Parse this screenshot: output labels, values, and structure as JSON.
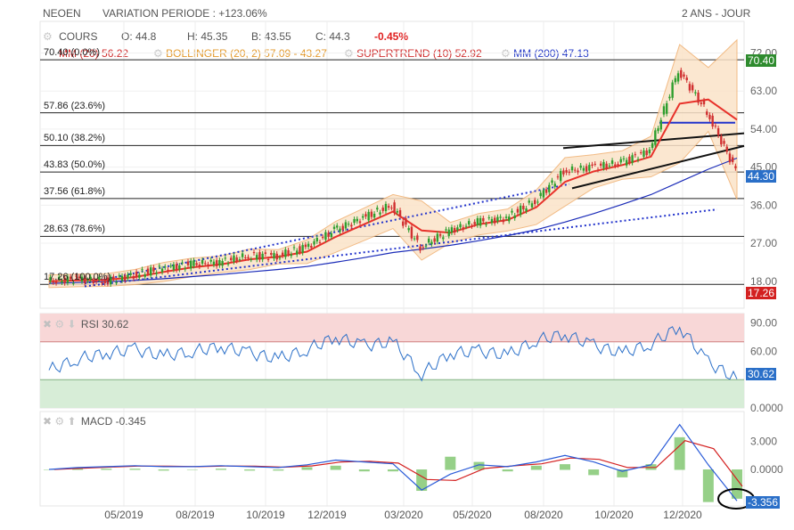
{
  "header": {
    "symbol": "NEOEN",
    "variation": "VARIATION PERIODE : +123.06%",
    "range": "2 ANS - JOUR"
  },
  "legend": {
    "cours_label": "COURS",
    "open": "O: 44.8",
    "high": "H: 45.35",
    "low": "B: 43.55",
    "close": "C: 44.3",
    "change": "-0.45%",
    "mm_label": "MM (20)",
    "mm_value": "56.22",
    "bollinger_label": "BOLLINGER (20, 2)",
    "bollinger_value": "57.09 - 43.27",
    "supertrend_label": "SUPERTREND (10)",
    "supertrend_value": "52.92",
    "mm200_label": "MM (200)",
    "mm200_value": "47.13"
  },
  "colors": {
    "candle_up": "#2e9e2e",
    "candle_down": "#d03030",
    "mm20": "#e8312a",
    "mm200": "#1a2bb8",
    "bollinger_fill": "#fbe3c8",
    "bollinger_line": "#f0b070",
    "supertrend": "#2e9e2e",
    "rsi_over": "#f8d7d7",
    "rsi_under": "#d7edd7",
    "macd_line": "#2a5bd8",
    "signal_line": "#d42020",
    "histogram": "#7cc46a"
  },
  "fibonacci": [
    {
      "label": "70.40 (0.0%)",
      "value": 70.4
    },
    {
      "label": "57.86 (23.6%)",
      "value": 57.86
    },
    {
      "label": "50.10 (38.2%)",
      "value": 50.1
    },
    {
      "label": "43.83 (50.0%)",
      "value": 43.83
    },
    {
      "label": "37.56 (61.8%)",
      "value": 37.56
    },
    {
      "label": "28.63 (78.6%)",
      "value": 28.63
    },
    {
      "label": "17.26 (100.0%)",
      "value": 17.26
    }
  ],
  "badges": {
    "high": "70.40",
    "last": "44.30",
    "low": "17.26",
    "rsi": "30.62",
    "macd": "-3.356"
  },
  "rsi": {
    "label": "RSI",
    "value": "30.62",
    "ticks": [
      "90.00",
      "60.00",
      "0.0000"
    ]
  },
  "macd": {
    "label": "MACD",
    "value": "-0.345",
    "ticks": [
      "3.000",
      "0.0000"
    ]
  },
  "chart_data": {
    "type": "line",
    "title": "NEOEN",
    "x_tick_labels": [
      "05/2019",
      "08/2019",
      "10/2019",
      "12/2019",
      "03/2020",
      "05/2020",
      "08/2020",
      "10/2020",
      "12/2020"
    ],
    "y_tick_labels": [
      "72.00",
      "63.00",
      "54.00",
      "45.00",
      "36.00",
      "27.00",
      "18.00"
    ],
    "ylim": [
      15,
      74
    ],
    "series": [
      {
        "name": "COURS",
        "x": [
          "02/2019",
          "03/2019",
          "04/2019",
          "05/2019",
          "06/2019",
          "07/2019",
          "08/2019",
          "09/2019",
          "10/2019",
          "11/2019",
          "12/2019",
          "01/2020",
          "02/2020",
          "03/2020",
          "04/2020",
          "05/2020",
          "06/2020",
          "07/2020",
          "08/2020",
          "09/2020",
          "10/2020",
          "11/2020",
          "12/2020",
          "01/2021",
          "02/2021"
        ],
        "values": [
          18,
          18.5,
          18,
          19.5,
          21,
          22,
          22.5,
          24,
          24,
          26,
          30,
          33,
          36,
          26,
          30,
          32,
          33,
          37,
          44,
          45,
          46,
          49,
          68,
          58,
          44.3
        ]
      },
      {
        "name": "MM (20)",
        "values": [
          18,
          18.2,
          18.3,
          19,
          20.2,
          21.3,
          22,
          23.2,
          23.8,
          25,
          28.5,
          31.5,
          34.5,
          30,
          29.5,
          31.5,
          32.5,
          35.5,
          41.5,
          44,
          45.5,
          47.5,
          60,
          61,
          56.22
        ]
      },
      {
        "name": "MM (200)",
        "values": [
          17.5,
          17.7,
          17.9,
          18.2,
          18.6,
          19.1,
          19.6,
          20.2,
          20.8,
          21.5,
          22.5,
          23.6,
          24.8,
          25.6,
          26.5,
          27.6,
          28.8,
          30.2,
          32,
          34,
          36.2,
          38.5,
          41.5,
          44.5,
          47.13
        ]
      }
    ],
    "rsi_values": [
      40,
      52,
      58,
      62,
      55,
      60,
      65,
      58,
      52,
      62,
      75,
      66,
      70,
      36,
      58,
      60,
      56,
      72,
      78,
      66,
      58,
      68,
      86,
      48,
      30.62
    ],
    "macd_values": [
      0,
      0.2,
      0.3,
      0.4,
      0.3,
      0.3,
      0.4,
      0.3,
      0.2,
      0.5,
      1,
      0.8,
      0.6,
      -2.2,
      -0.5,
      0.5,
      0.3,
      0.8,
      1.5,
      0.8,
      -0.2,
      0.5,
      4.8,
      0.5,
      -3.356
    ]
  }
}
